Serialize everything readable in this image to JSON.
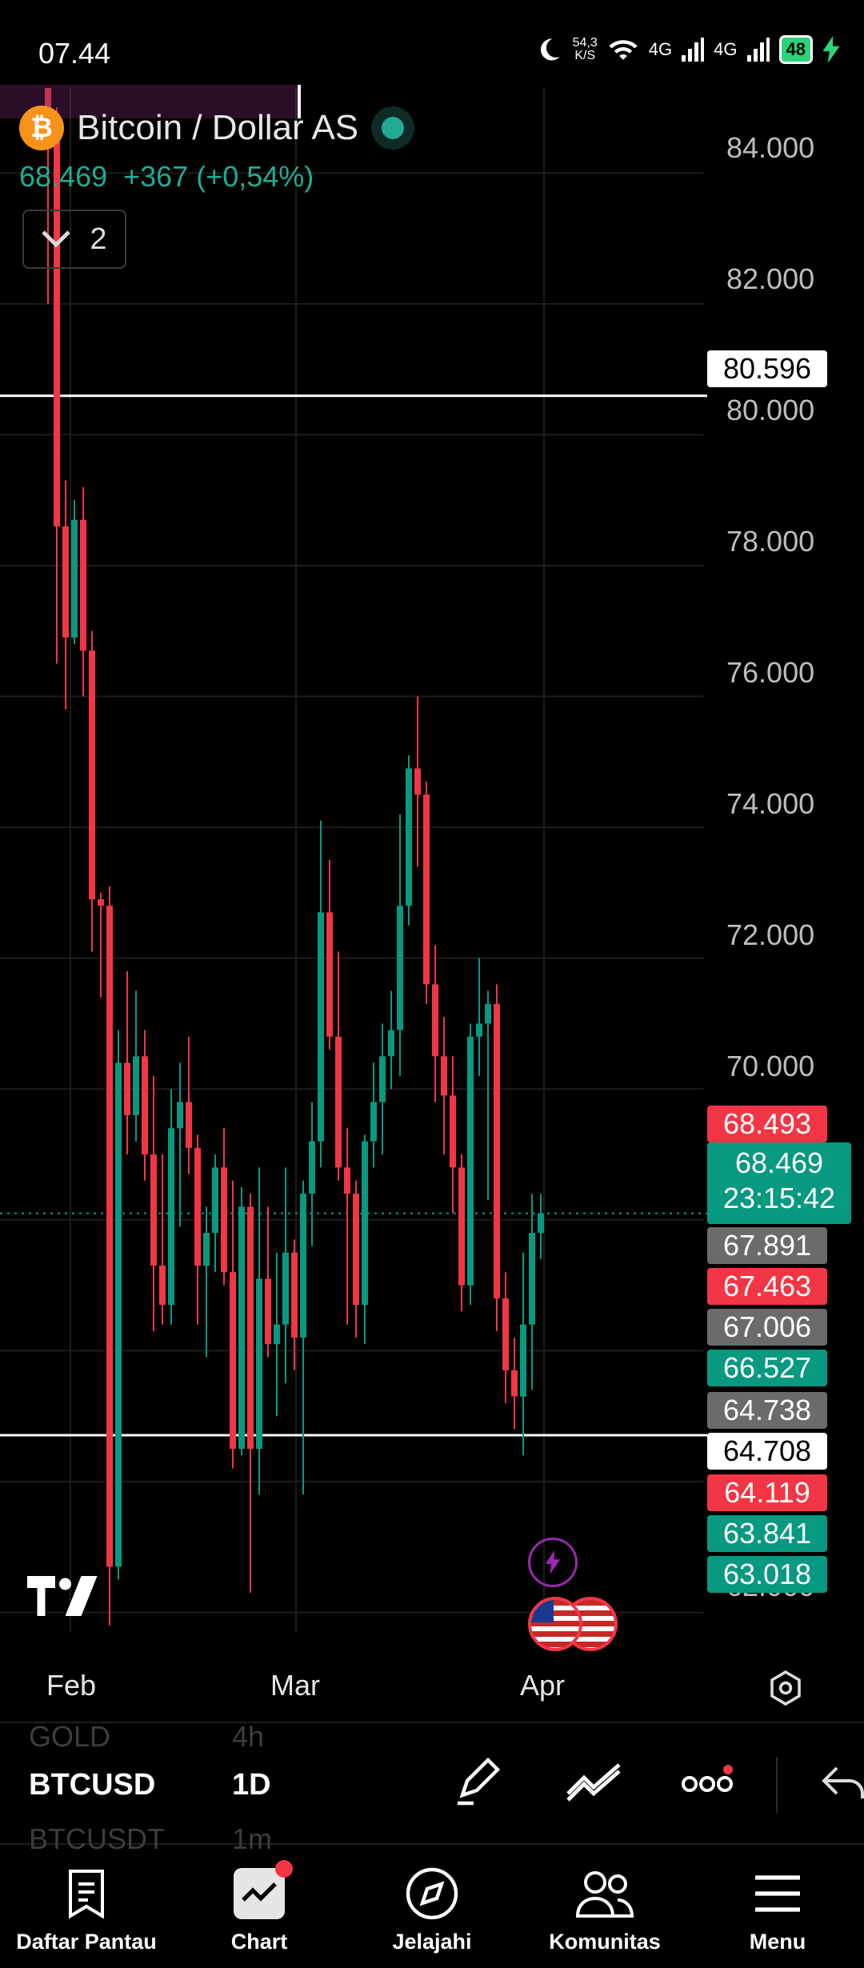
{
  "status_bar": {
    "time": "07.44",
    "net_speed": "54,3",
    "net_unit": "K/S",
    "sig1": "4G",
    "sig2": "4G",
    "battery": "48"
  },
  "symbol": {
    "title": "Bitcoin / Dollar AS",
    "price": "68.469",
    "change": "+367 (+0,54%)",
    "indicators_count": "2",
    "logo_glyph": "₿"
  },
  "price_axis": [
    "84.000",
    "82.000",
    "80.000",
    "78.000",
    "76.000",
    "74.000",
    "72.000",
    "70.000",
    "62.000"
  ],
  "price_tags": [
    {
      "text": "80.596",
      "bg": "#ffffff",
      "fg": "#000000"
    },
    {
      "text": "68.493",
      "bg": "#f23645",
      "fg": "#ffffff"
    },
    {
      "text": "67.891",
      "bg": "#6b6b6b",
      "fg": "#ffffff"
    },
    {
      "text": "67.463",
      "bg": "#f23645",
      "fg": "#ffffff"
    },
    {
      "text": "67.006",
      "bg": "#6b6b6b",
      "fg": "#ffffff"
    },
    {
      "text": "66.527",
      "bg": "#089981",
      "fg": "#ffffff"
    },
    {
      "text": "64.738",
      "bg": "#6b6b6b",
      "fg": "#ffffff"
    },
    {
      "text": "64.708",
      "bg": "#ffffff",
      "fg": "#000000"
    },
    {
      "text": "64.119",
      "bg": "#f23645",
      "fg": "#ffffff"
    },
    {
      "text": "63.841",
      "bg": "#089981",
      "fg": "#ffffff"
    },
    {
      "text": "63.018",
      "bg": "#089981",
      "fg": "#ffffff"
    }
  ],
  "current_price_tag": {
    "price": "68.469",
    "countdown": "23:15:42"
  },
  "time_axis": [
    "Feb",
    "Mar",
    "Apr"
  ],
  "toolbar": {
    "ghost_above": {
      "symbol": "GOLD",
      "interval": "4h"
    },
    "symbol": "BTCUSD",
    "interval": "1D",
    "ghost_below": {
      "symbol": "BTCUSDT",
      "interval": "1m"
    }
  },
  "nav": [
    {
      "label": "Daftar Pantau",
      "icon": "watchlist-icon"
    },
    {
      "label": "Chart",
      "icon": "chart-icon"
    },
    {
      "label": "Jelajahi",
      "icon": "compass-icon"
    },
    {
      "label": "Komunitas",
      "icon": "community-icon"
    },
    {
      "label": "Menu",
      "icon": "menu-icon"
    }
  ],
  "colors": {
    "up": "#089981",
    "down": "#f23645",
    "bg": "#000000",
    "grid": "#1c1c1c",
    "accent_purple": "#9c27b0"
  },
  "chart_data": {
    "type": "candlestick",
    "interval": "1D",
    "y_range": [
      61700,
      85300
    ],
    "x_ticks": [
      "Feb",
      "Mar",
      "Apr"
    ],
    "horizontal_lines": [
      80596,
      64708
    ],
    "candles": [
      {
        "o": 86000,
        "h": 87000,
        "l": 82000,
        "c": 84500
      },
      {
        "o": 84500,
        "h": 85000,
        "l": 76500,
        "c": 78600
      },
      {
        "o": 78600,
        "h": 79300,
        "l": 75800,
        "c": 76900
      },
      {
        "o": 76900,
        "h": 79000,
        "l": 76800,
        "c": 78700
      },
      {
        "o": 78700,
        "h": 79200,
        "l": 76000,
        "c": 76700
      },
      {
        "o": 76700,
        "h": 77000,
        "l": 72100,
        "c": 72900
      },
      {
        "o": 72900,
        "h": 73000,
        "l": 71400,
        "c": 72800
      },
      {
        "o": 72800,
        "h": 73100,
        "l": 61800,
        "c": 62700
      },
      {
        "o": 62700,
        "h": 70900,
        "l": 62500,
        "c": 70400
      },
      {
        "o": 70400,
        "h": 71800,
        "l": 69000,
        "c": 69600
      },
      {
        "o": 69600,
        "h": 71500,
        "l": 69200,
        "c": 70500
      },
      {
        "o": 70500,
        "h": 70900,
        "l": 68600,
        "c": 69000
      },
      {
        "o": 69000,
        "h": 70200,
        "l": 66300,
        "c": 67300
      },
      {
        "o": 67300,
        "h": 69000,
        "l": 66400,
        "c": 66700
      },
      {
        "o": 66700,
        "h": 70000,
        "l": 66400,
        "c": 69400
      },
      {
        "o": 69400,
        "h": 70400,
        "l": 67900,
        "c": 69800
      },
      {
        "o": 69800,
        "h": 70800,
        "l": 68700,
        "c": 69100
      },
      {
        "o": 69100,
        "h": 69300,
        "l": 66400,
        "c": 67300
      },
      {
        "o": 67300,
        "h": 68200,
        "l": 65900,
        "c": 67800
      },
      {
        "o": 67800,
        "h": 69000,
        "l": 67200,
        "c": 68800
      },
      {
        "o": 68800,
        "h": 69400,
        "l": 67000,
        "c": 67200
      },
      {
        "o": 67200,
        "h": 68600,
        "l": 64200,
        "c": 64500
      },
      {
        "o": 64500,
        "h": 68500,
        "l": 64400,
        "c": 68200
      },
      {
        "o": 68200,
        "h": 68400,
        "l": 62300,
        "c": 64500
      },
      {
        "o": 64500,
        "h": 68800,
        "l": 63800,
        "c": 67100
      },
      {
        "o": 67100,
        "h": 68200,
        "l": 65900,
        "c": 66100
      },
      {
        "o": 66100,
        "h": 67500,
        "l": 65000,
        "c": 66400
      },
      {
        "o": 66400,
        "h": 68800,
        "l": 65500,
        "c": 67500
      },
      {
        "o": 67500,
        "h": 67700,
        "l": 65700,
        "c": 66200
      },
      {
        "o": 66200,
        "h": 68600,
        "l": 63800,
        "c": 68400
      },
      {
        "o": 68400,
        "h": 69800,
        "l": 67600,
        "c": 69200
      },
      {
        "o": 69200,
        "h": 74100,
        "l": 68800,
        "c": 72700
      },
      {
        "o": 72700,
        "h": 73500,
        "l": 70600,
        "c": 70800
      },
      {
        "o": 70800,
        "h": 72100,
        "l": 68600,
        "c": 68800
      },
      {
        "o": 68800,
        "h": 69400,
        "l": 66400,
        "c": 68400
      },
      {
        "o": 68400,
        "h": 68600,
        "l": 66200,
        "c": 66700
      },
      {
        "o": 66700,
        "h": 69300,
        "l": 66100,
        "c": 69200
      },
      {
        "o": 69200,
        "h": 70400,
        "l": 68800,
        "c": 69800
      },
      {
        "o": 69800,
        "h": 71000,
        "l": 69000,
        "c": 70500
      },
      {
        "o": 70500,
        "h": 71500,
        "l": 70000,
        "c": 70900
      },
      {
        "o": 70900,
        "h": 74200,
        "l": 70200,
        "c": 72800
      },
      {
        "o": 72800,
        "h": 75100,
        "l": 72500,
        "c": 74900
      },
      {
        "o": 74900,
        "h": 76000,
        "l": 73400,
        "c": 74500
      },
      {
        "o": 74500,
        "h": 74700,
        "l": 71300,
        "c": 71600
      },
      {
        "o": 71600,
        "h": 72200,
        "l": 69800,
        "c": 70500
      },
      {
        "o": 70500,
        "h": 71100,
        "l": 69000,
        "c": 69900
      },
      {
        "o": 69900,
        "h": 70500,
        "l": 68100,
        "c": 68800
      },
      {
        "o": 68800,
        "h": 69000,
        "l": 66600,
        "c": 67000
      },
      {
        "o": 67000,
        "h": 71000,
        "l": 66700,
        "c": 70800
      },
      {
        "o": 70800,
        "h": 72000,
        "l": 70200,
        "c": 71000
      },
      {
        "o": 71000,
        "h": 71500,
        "l": 68300,
        "c": 71300
      },
      {
        "o": 71300,
        "h": 71600,
        "l": 66300,
        "c": 66800
      },
      {
        "o": 66800,
        "h": 67200,
        "l": 65200,
        "c": 65700
      },
      {
        "o": 65700,
        "h": 66200,
        "l": 64800,
        "c": 65300
      },
      {
        "o": 65300,
        "h": 67500,
        "l": 64400,
        "c": 66400
      },
      {
        "o": 66400,
        "h": 68400,
        "l": 65400,
        "c": 67800
      },
      {
        "o": 67800,
        "h": 68400,
        "l": 67400,
        "c": 68100
      }
    ]
  }
}
